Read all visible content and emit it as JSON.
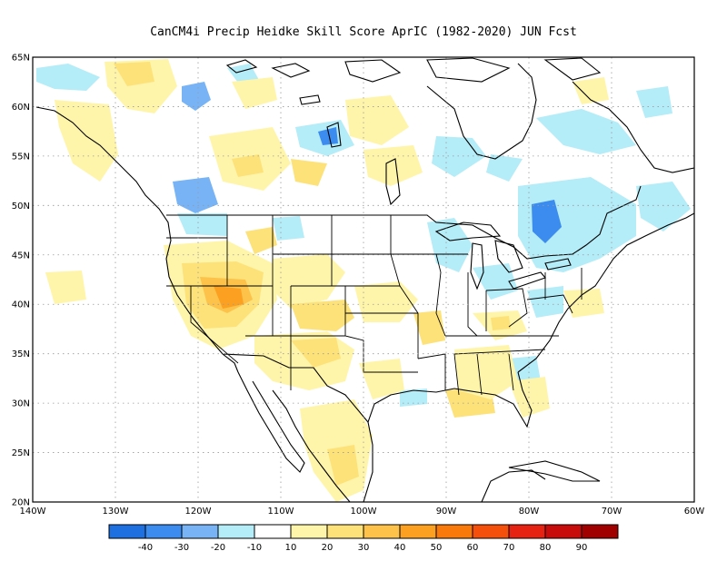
{
  "title": "CanCM4i Precip Heidke Skill Score AprIC (1982-2020) JUN Fcst",
  "map": {
    "lat_labels": [
      "65N",
      "60N",
      "55N",
      "50N",
      "45N",
      "40N",
      "35N",
      "30N",
      "25N",
      "20N"
    ],
    "lon_labels": [
      "140W",
      "130W",
      "120W",
      "110W",
      "100W",
      "90W",
      "80W",
      "70W",
      "60W"
    ],
    "lat_range": [
      20,
      65
    ],
    "lon_range": [
      -140,
      -60
    ],
    "grid": "dotted",
    "colors": {
      "neg40": "#1e6fe0",
      "neg30": "#3c8cf0",
      "neg20": "#78b4f5",
      "neg10": "#b4ecf8",
      "zero": "#ffffff",
      "pos10": "#fff5aa",
      "pos20": "#fde27a",
      "pos30": "#fcc24a",
      "pos40": "#fba020",
      "pos50": "#f97a0a",
      "pos60": "#f4500c",
      "pos70": "#e62212",
      "pos80": "#c80c0c",
      "pos90": "#a00000"
    }
  },
  "colorbar": {
    "labels": [
      "-40",
      "-30",
      "-20",
      "-10",
      "10",
      "20",
      "30",
      "40",
      "50",
      "60",
      "70",
      "80",
      "90"
    ],
    "colors": [
      "#1e6fe0",
      "#3c8cf0",
      "#78b4f5",
      "#b4ecf8",
      "#ffffff",
      "#fff5aa",
      "#fde27a",
      "#fcc24a",
      "#fba020",
      "#f97a0a",
      "#f4500c",
      "#e62212",
      "#c80c0c",
      "#a00000"
    ]
  }
}
